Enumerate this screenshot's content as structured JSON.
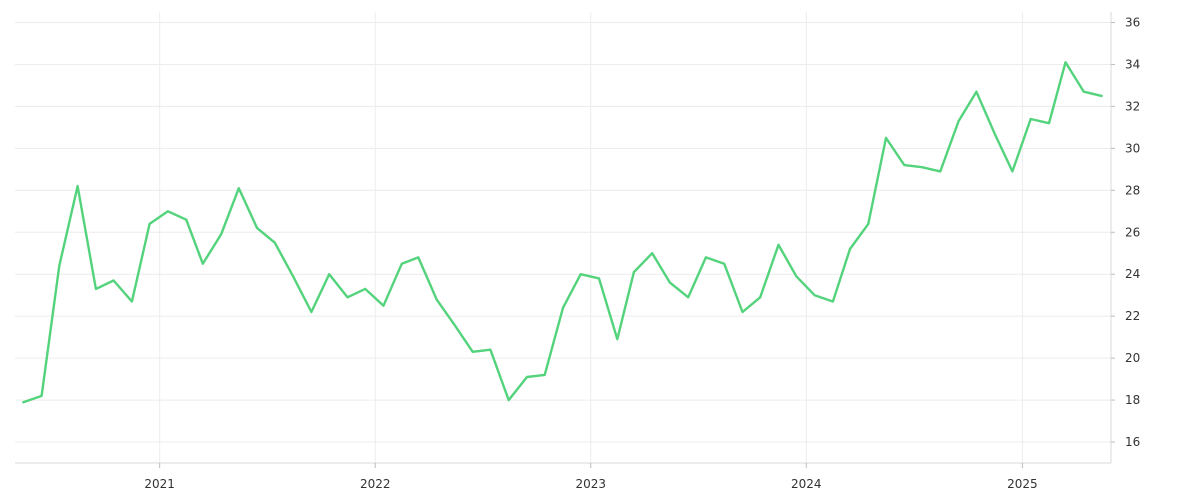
{
  "chart_data": {
    "type": "line",
    "title": "",
    "xlabel": "",
    "ylabel": "",
    "grid": true,
    "legend": "none",
    "y_axis_position": "right",
    "ylim": [
      15,
      36.5
    ],
    "xlim": [
      "2020-05-01",
      "2025-05-31"
    ],
    "x_ticks": [
      "2021",
      "2022",
      "2023",
      "2024",
      "2025"
    ],
    "y_ticks": [
      16,
      18,
      20,
      22,
      24,
      26,
      28,
      30,
      32,
      34,
      36
    ],
    "series": [
      {
        "color": "#53d37b",
        "x": [
          "2020-05",
          "2020-06",
          "2020-07",
          "2020-08",
          "2020-09",
          "2020-10",
          "2020-11",
          "2020-12",
          "2021-01",
          "2021-02",
          "2021-03",
          "2021-04",
          "2021-05",
          "2021-06",
          "2021-07",
          "2021-08",
          "2021-09",
          "2021-10",
          "2021-11",
          "2021-12",
          "2022-01",
          "2022-02",
          "2022-03",
          "2022-04",
          "2022-05",
          "2022-06",
          "2022-07",
          "2022-08",
          "2022-09",
          "2022-10",
          "2022-11",
          "2022-12",
          "2023-01",
          "2023-02",
          "2023-03",
          "2023-04",
          "2023-05",
          "2023-06",
          "2023-07",
          "2023-08",
          "2023-09",
          "2023-10",
          "2023-11",
          "2023-12",
          "2024-01",
          "2024-02",
          "2024-03",
          "2024-04",
          "2024-05",
          "2024-06",
          "2024-07",
          "2024-08",
          "2024-09",
          "2024-10",
          "2024-11",
          "2024-12",
          "2025-01",
          "2025-02",
          "2025-03",
          "2025-04",
          "2025-05"
        ],
        "values": [
          17.9,
          18.2,
          24.4,
          28.2,
          23.3,
          23.7,
          22.7,
          26.4,
          27.0,
          26.6,
          24.5,
          25.9,
          28.1,
          26.2,
          25.5,
          23.9,
          22.2,
          24.0,
          22.9,
          23.3,
          22.5,
          24.5,
          24.8,
          22.8,
          21.6,
          20.3,
          20.4,
          18.0,
          19.1,
          19.2,
          22.4,
          24.0,
          23.8,
          20.9,
          24.1,
          25.0,
          23.6,
          22.9,
          24.8,
          24.5,
          22.2,
          22.9,
          25.4,
          23.9,
          23.0,
          22.7,
          25.2,
          26.4,
          30.5,
          29.2,
          29.1,
          28.9,
          31.3,
          32.7,
          30.7,
          28.9,
          31.4,
          31.2,
          34.1,
          32.7,
          32.5
        ]
      }
    ]
  }
}
